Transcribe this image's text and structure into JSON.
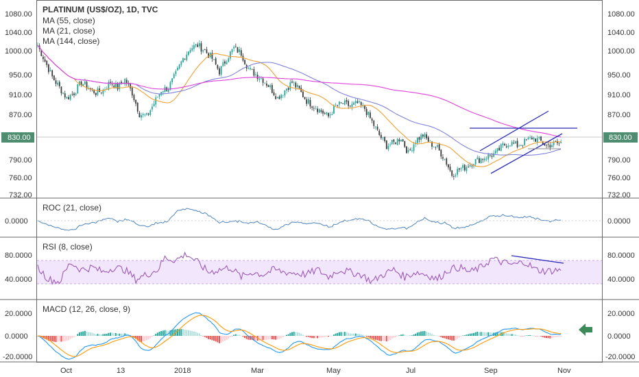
{
  "chart_data": {
    "type": "candlestick",
    "title": "PLATINUM (US$/OZ), 1D, TVC",
    "indicators": [
      "MA (55, close)",
      "MA (21, close)",
      "MA (144, close)"
    ],
    "last_price": "830.00",
    "x_ticks": [
      "Oct",
      "13",
      "2018",
      "Mar",
      "May",
      "Jul",
      "Sep",
      "Nov"
    ],
    "price_axis": {
      "ticks": [
        "1080.00",
        "1040.00",
        "1000.00",
        "950.00",
        "910.00",
        "870.00",
        "830.00",
        "790.00",
        "760.00",
        "732.00"
      ],
      "ylim": [
        732,
        1080
      ]
    },
    "panes": [
      {
        "id": "roc",
        "title": "ROC (21, close)",
        "ticks": [
          "0.0000"
        ]
      },
      {
        "id": "rsi",
        "title": "RSI (8, close)",
        "ticks": [
          "80.0000",
          "40.0000"
        ],
        "band": [
          30,
          70
        ]
      },
      {
        "id": "macd",
        "title": "MACD (12, 26, close, 9)",
        "ticks": [
          "20.0000",
          "0.0000",
          "-20.0000"
        ]
      }
    ],
    "price_anchors": [
      [
        0,
        1015
      ],
      [
        4,
        985
      ],
      [
        8,
        955
      ],
      [
        12,
        935
      ],
      [
        16,
        915
      ],
      [
        20,
        925
      ],
      [
        24,
        945
      ],
      [
        28,
        935
      ],
      [
        32,
        925
      ],
      [
        36,
        930
      ],
      [
        40,
        945
      ],
      [
        44,
        935
      ],
      [
        48,
        950
      ],
      [
        52,
        925
      ],
      [
        56,
        885
      ],
      [
        60,
        880
      ],
      [
        64,
        905
      ],
      [
        68,
        930
      ],
      [
        72,
        935
      ],
      [
        76,
        960
      ],
      [
        80,
        990
      ],
      [
        84,
        1010
      ],
      [
        88,
        1015
      ],
      [
        92,
        1005
      ],
      [
        96,
        990
      ],
      [
        100,
        965
      ],
      [
        104,
        990
      ],
      [
        108,
        1010
      ],
      [
        112,
        1000
      ],
      [
        116,
        970
      ],
      [
        120,
        960
      ],
      [
        124,
        950
      ],
      [
        128,
        935
      ],
      [
        132,
        915
      ],
      [
        136,
        930
      ],
      [
        140,
        945
      ],
      [
        144,
        930
      ],
      [
        148,
        910
      ],
      [
        152,
        900
      ],
      [
        156,
        890
      ],
      [
        160,
        880
      ],
      [
        164,
        900
      ],
      [
        168,
        905
      ],
      [
        172,
        900
      ],
      [
        176,
        905
      ],
      [
        180,
        895
      ],
      [
        184,
        870
      ],
      [
        188,
        845
      ],
      [
        192,
        825
      ],
      [
        196,
        830
      ],
      [
        200,
        840
      ],
      [
        204,
        810
      ],
      [
        208,
        835
      ],
      [
        212,
        845
      ],
      [
        216,
        830
      ],
      [
        220,
        820
      ],
      [
        224,
        800
      ],
      [
        228,
        770
      ],
      [
        232,
        780
      ],
      [
        236,
        785
      ],
      [
        240,
        795
      ],
      [
        244,
        800
      ],
      [
        248,
        805
      ],
      [
        252,
        810
      ],
      [
        256,
        825
      ],
      [
        260,
        830
      ],
      [
        264,
        825
      ],
      [
        268,
        832
      ],
      [
        272,
        840
      ],
      [
        276,
        835
      ],
      [
        280,
        825
      ],
      [
        284,
        828
      ],
      [
        288,
        830
      ]
    ],
    "price_seed": 7,
    "rsi_anchors": [
      [
        0,
        60
      ],
      [
        6,
        35
      ],
      [
        12,
        30
      ],
      [
        18,
        70
      ],
      [
        24,
        55
      ],
      [
        30,
        60
      ],
      [
        36,
        50
      ],
      [
        42,
        60
      ],
      [
        48,
        55
      ],
      [
        54,
        35
      ],
      [
        60,
        45
      ],
      [
        66,
        55
      ],
      [
        70,
        80
      ],
      [
        76,
        75
      ],
      [
        82,
        88
      ],
      [
        88,
        70
      ],
      [
        94,
        50
      ],
      [
        100,
        55
      ],
      [
        106,
        60
      ],
      [
        112,
        40
      ],
      [
        118,
        50
      ],
      [
        124,
        45
      ],
      [
        130,
        55
      ],
      [
        136,
        50
      ],
      [
        142,
        48
      ],
      [
        148,
        45
      ],
      [
        154,
        55
      ],
      [
        160,
        40
      ],
      [
        166,
        55
      ],
      [
        172,
        50
      ],
      [
        178,
        45
      ],
      [
        184,
        30
      ],
      [
        190,
        45
      ],
      [
        196,
        55
      ],
      [
        202,
        40
      ],
      [
        208,
        50
      ],
      [
        214,
        45
      ],
      [
        220,
        35
      ],
      [
        226,
        55
      ],
      [
        232,
        60
      ],
      [
        238,
        50
      ],
      [
        244,
        60
      ],
      [
        250,
        78
      ],
      [
        256,
        70
      ],
      [
        262,
        65
      ],
      [
        268,
        72
      ],
      [
        274,
        55
      ],
      [
        280,
        52
      ],
      [
        288,
        55
      ]
    ],
    "trendlines": "channel-and-resistance",
    "indicator_arrow": "left-green"
  }
}
